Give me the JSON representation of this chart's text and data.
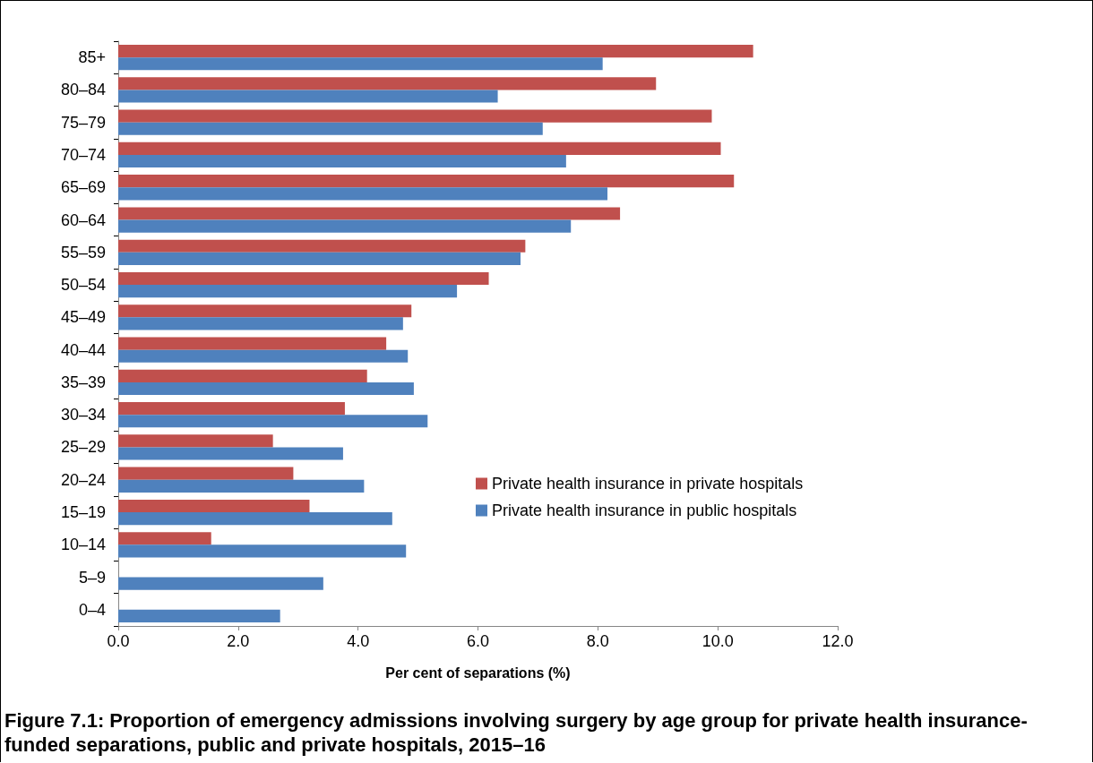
{
  "chart_data": {
    "type": "bar",
    "orientation": "horizontal",
    "title": "Figure 7.1: Proportion of emergency admissions involving surgery by age group for private health insurance-funded separations, public and private hospitals, 2015–16",
    "xlabel": "Per cent of separations (%)",
    "categories": [
      "85+",
      "80–84",
      "75–79",
      "70–74",
      "65–69",
      "60–64",
      "55–59",
      "50–54",
      "45–49",
      "40–44",
      "35–39",
      "30–34",
      "25–29",
      "20–24",
      "15–19",
      "10–14",
      "5–9",
      "0–4"
    ],
    "series": [
      {
        "name": "Private health insurance in private hospitals",
        "color": "#c0504d",
        "values": [
          10.59,
          8.97,
          9.9,
          10.05,
          10.27,
          8.37,
          6.79,
          6.18,
          4.89,
          4.47,
          4.15,
          3.78,
          2.58,
          2.92,
          3.19,
          1.55,
          null,
          null
        ]
      },
      {
        "name": "Private health insurance in public hospitals",
        "color": "#4f81bd",
        "values": [
          8.08,
          6.33,
          7.08,
          7.47,
          8.16,
          7.55,
          6.71,
          5.65,
          4.75,
          4.83,
          4.93,
          5.16,
          3.75,
          4.1,
          4.57,
          4.8,
          3.42,
          2.7
        ]
      }
    ],
    "xlim": [
      0,
      12
    ],
    "xticks": [
      {
        "value": 0,
        "label": "0.0"
      },
      {
        "value": 2,
        "label": "2.0"
      },
      {
        "value": 4,
        "label": "4.0"
      },
      {
        "value": 6,
        "label": "6.0"
      },
      {
        "value": 8,
        "label": "8.0"
      },
      {
        "value": 10,
        "label": "10.0"
      },
      {
        "value": 12,
        "label": "12.0"
      }
    ],
    "grid": false,
    "legend": "right"
  }
}
